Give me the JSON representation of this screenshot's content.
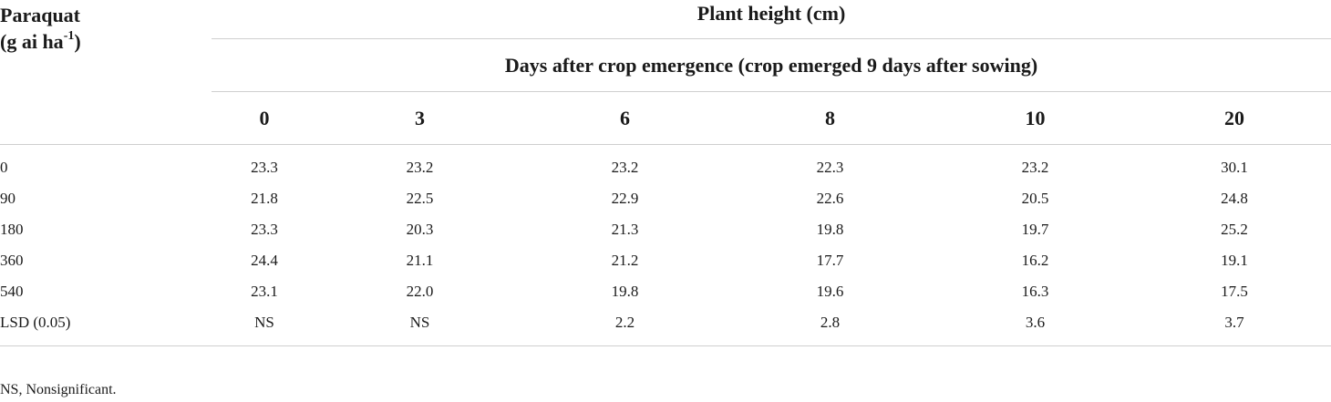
{
  "table": {
    "stub_header_line1": "Paraquat",
    "stub_header_line2_prefix": "(g ai ha",
    "stub_header_line2_sup": "-1",
    "stub_header_line2_suffix": ")",
    "span_header": "Plant height (cm)",
    "sub_span_header": "Days after crop emergence (crop emerged 9 days after sowing)",
    "day_columns": [
      "0",
      "3",
      "6",
      "8",
      "10",
      "20"
    ],
    "rows": [
      {
        "label": "0",
        "values": [
          "23.3",
          "23.2",
          "23.2",
          "22.3",
          "23.2",
          "30.1"
        ]
      },
      {
        "label": "90",
        "values": [
          "21.8",
          "22.5",
          "22.9",
          "22.6",
          "20.5",
          "24.8"
        ]
      },
      {
        "label": "180",
        "values": [
          "23.3",
          "20.3",
          "21.3",
          "19.8",
          "19.7",
          "25.2"
        ]
      },
      {
        "label": "360",
        "values": [
          "24.4",
          "21.1",
          "21.2",
          "17.7",
          "16.2",
          "19.1"
        ]
      },
      {
        "label": "540",
        "values": [
          "23.1",
          "22.0",
          "19.8",
          "19.6",
          "16.3",
          "17.5"
        ]
      },
      {
        "label": "LSD (0.05)",
        "values": [
          "NS",
          "NS",
          "2.2",
          "2.8",
          "3.6",
          "3.7"
        ]
      }
    ]
  },
  "footnote": "NS, Nonsignificant."
}
